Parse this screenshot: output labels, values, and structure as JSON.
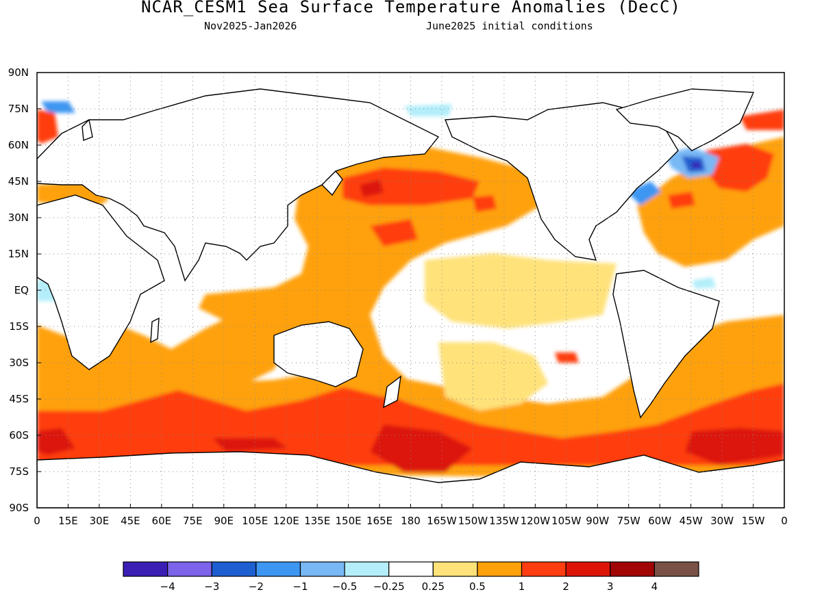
{
  "title": "NCAR_CESM1 Sea Surface Temperature Anomalies (DecC)",
  "subtitle_left": "Nov2025-Jan2026",
  "subtitle_right": "June2025 initial conditions",
  "lat_labels": [
    "90N",
    "75N",
    "60N",
    "45N",
    "30N",
    "15N",
    "EQ",
    "15S",
    "30S",
    "45S",
    "60S",
    "75S",
    "90S"
  ],
  "lon_labels": [
    "0",
    "15E",
    "30E",
    "45E",
    "60E",
    "75E",
    "90E",
    "105E",
    "120E",
    "135E",
    "150E",
    "165E",
    "180",
    "165W",
    "150W",
    "135W",
    "120W",
    "105W",
    "90W",
    "75W",
    "60W",
    "45W",
    "30W",
    "15W",
    "0"
  ],
  "colorbar": {
    "colors": [
      "#3b1fb5",
      "#7c63ea",
      "#1d5ed0",
      "#3d96f2",
      "#78b8f5",
      "#b3eefa",
      "#ffffff",
      "#ffe27a",
      "#ffa10b",
      "#ff3d10",
      "#dc1408",
      "#a10505",
      "#7a5245"
    ],
    "labels": [
      "−4",
      "−3",
      "−2",
      "−1",
      "−0.5",
      "−0.25",
      "0.25",
      "0.5",
      "1",
      "2",
      "3",
      "4"
    ]
  }
}
